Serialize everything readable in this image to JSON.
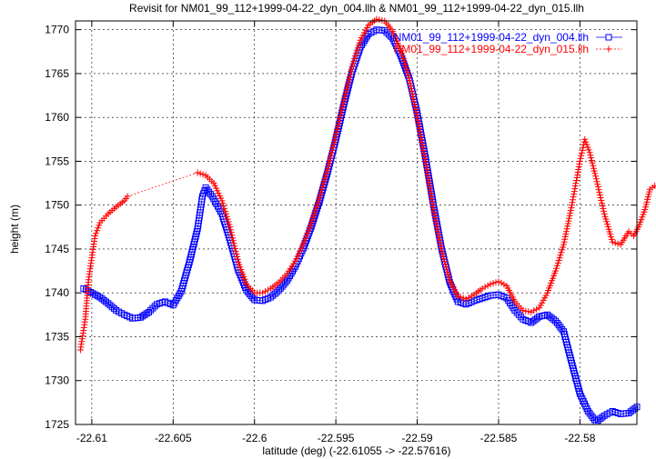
{
  "chart_data": {
    "type": "scatter",
    "title": "Revisit for NM01_99_112+1999-04-22_dyn_004.llh & NM01_99_112+1999-04-22_dyn_015.llh",
    "xlabel": "latitude (deg) (-22.61055 -> -22.57616)",
    "ylabel": "height (m)",
    "xlim": [
      -22.611,
      -22.5765
    ],
    "ylim": [
      1725,
      1771
    ],
    "xticks": [
      {
        "value": -22.61,
        "label": "-22.61"
      },
      {
        "value": -22.605,
        "label": "-22.605"
      },
      {
        "value": -22.6,
        "label": "-22.6"
      },
      {
        "value": -22.595,
        "label": "-22.595"
      },
      {
        "value": -22.59,
        "label": "-22.59"
      },
      {
        "value": -22.585,
        "label": "-22.585"
      },
      {
        "value": -22.58,
        "label": "-22.58"
      }
    ],
    "yticks": [
      {
        "value": 1725,
        "label": "1725"
      },
      {
        "value": 1730,
        "label": "1730"
      },
      {
        "value": 1735,
        "label": "1735"
      },
      {
        "value": 1740,
        "label": "1740"
      },
      {
        "value": 1745,
        "label": "1745"
      },
      {
        "value": 1750,
        "label": "1750"
      },
      {
        "value": 1755,
        "label": "1755"
      },
      {
        "value": 1760,
        "label": "1760"
      },
      {
        "value": 1765,
        "label": "1765"
      },
      {
        "value": 1770,
        "label": "1770"
      }
    ],
    "grid": true,
    "legend_position": "top-right",
    "series": [
      {
        "name": "NM01_99_112+1999-04-22_dyn_004.llh",
        "color": "#0000ff",
        "marker": "square",
        "points": [
          [
            -22.6105,
            1740.5
          ],
          [
            -22.6095,
            1739.5
          ],
          [
            -22.609,
            1738.8
          ],
          [
            -22.6085,
            1738.0
          ],
          [
            -22.608,
            1737.5
          ],
          [
            -22.6075,
            1737.1
          ],
          [
            -22.607,
            1737.2
          ],
          [
            -22.6065,
            1737.8
          ],
          [
            -22.606,
            1738.7
          ],
          [
            -22.6055,
            1739.0
          ],
          [
            -22.605,
            1738.6
          ],
          [
            -22.6045,
            1740.2
          ],
          [
            -22.604,
            1743.5
          ],
          [
            -22.6035,
            1747.3
          ],
          [
            -22.6032,
            1751.0
          ],
          [
            -22.603,
            1752.0
          ],
          [
            -22.6026,
            1751.0
          ],
          [
            -22.602,
            1749.0
          ],
          [
            -22.6015,
            1746.0
          ],
          [
            -22.601,
            1742.6
          ],
          [
            -22.6005,
            1740.3
          ],
          [
            -22.6,
            1739.2
          ],
          [
            -22.5995,
            1739.1
          ],
          [
            -22.599,
            1739.5
          ],
          [
            -22.5985,
            1740.3
          ],
          [
            -22.598,
            1741.4
          ],
          [
            -22.5975,
            1743.0
          ],
          [
            -22.597,
            1745.1
          ],
          [
            -22.5965,
            1747.6
          ],
          [
            -22.596,
            1750.5
          ],
          [
            -22.5955,
            1753.8
          ],
          [
            -22.595,
            1757.5
          ],
          [
            -22.5945,
            1761.5
          ],
          [
            -22.594,
            1765.2
          ],
          [
            -22.5935,
            1768.0
          ],
          [
            -22.593,
            1769.5
          ],
          [
            -22.5925,
            1770.0
          ],
          [
            -22.592,
            1769.9
          ],
          [
            -22.5915,
            1769.0
          ],
          [
            -22.591,
            1767.0
          ],
          [
            -22.5905,
            1764.5
          ],
          [
            -22.59,
            1760.5
          ],
          [
            -22.5895,
            1755.5
          ],
          [
            -22.589,
            1750.0
          ],
          [
            -22.5885,
            1745.0
          ],
          [
            -22.588,
            1741.2
          ],
          [
            -22.5875,
            1739.0
          ],
          [
            -22.587,
            1738.7
          ],
          [
            -22.5865,
            1739.1
          ],
          [
            -22.586,
            1739.4
          ],
          [
            -22.5855,
            1739.7
          ],
          [
            -22.585,
            1739.8
          ],
          [
            -22.5845,
            1739.4
          ],
          [
            -22.584,
            1738.0
          ],
          [
            -22.5835,
            1737.0
          ],
          [
            -22.583,
            1736.6
          ],
          [
            -22.5825,
            1737.3
          ],
          [
            -22.582,
            1737.5
          ],
          [
            -22.5815,
            1736.8
          ],
          [
            -22.581,
            1735.6
          ],
          [
            -22.5805,
            1732.0
          ],
          [
            -22.58,
            1728.5
          ],
          [
            -22.5795,
            1726.5
          ],
          [
            -22.579,
            1725.3
          ],
          [
            -22.5785,
            1726.0
          ],
          [
            -22.578,
            1726.5
          ],
          [
            -22.5775,
            1726.2
          ],
          [
            -22.577,
            1726.3
          ],
          [
            -22.5765,
            1727.0
          ]
        ]
      },
      {
        "name": "NM01_99_112+1999-04-22_dyn_015.llh",
        "color": "#ff0000",
        "marker": "plus",
        "points": [
          [
            -22.6107,
            1733.5
          ],
          [
            -22.6104,
            1737.0
          ],
          [
            -22.6102,
            1741.5
          ],
          [
            -22.61,
            1744.0
          ],
          [
            -22.6098,
            1746.5
          ],
          [
            -22.6095,
            1748.0
          ],
          [
            -22.609,
            1749.0
          ],
          [
            -22.6085,
            1749.8
          ],
          [
            -22.608,
            1750.5
          ],
          [
            -22.6078,
            1751.0
          ],
          [
            -22.6035,
            1753.7
          ],
          [
            -22.603,
            1753.4
          ],
          [
            -22.6025,
            1752.5
          ],
          [
            -22.602,
            1750.5
          ],
          [
            -22.6015,
            1747.5
          ],
          [
            -22.601,
            1743.5
          ],
          [
            -22.6005,
            1741.0
          ],
          [
            -22.6,
            1740.0
          ],
          [
            -22.5995,
            1740.0
          ],
          [
            -22.599,
            1740.5
          ],
          [
            -22.5985,
            1741.2
          ],
          [
            -22.598,
            1742.2
          ],
          [
            -22.5975,
            1743.6
          ],
          [
            -22.597,
            1745.6
          ],
          [
            -22.5965,
            1748.0
          ],
          [
            -22.596,
            1750.9
          ],
          [
            -22.5955,
            1754.2
          ],
          [
            -22.595,
            1758.0
          ],
          [
            -22.5945,
            1762.0
          ],
          [
            -22.594,
            1765.8
          ],
          [
            -22.5935,
            1768.8
          ],
          [
            -22.593,
            1770.5
          ],
          [
            -22.5925,
            1771.2
          ],
          [
            -22.592,
            1771.0
          ],
          [
            -22.5915,
            1769.8
          ],
          [
            -22.591,
            1767.6
          ],
          [
            -22.5905,
            1764.5
          ],
          [
            -22.59,
            1760.0
          ],
          [
            -22.5895,
            1755.0
          ],
          [
            -22.589,
            1749.5
          ],
          [
            -22.5885,
            1744.8
          ],
          [
            -22.588,
            1741.4
          ],
          [
            -22.5875,
            1739.6
          ],
          [
            -22.587,
            1739.3
          ],
          [
            -22.5865,
            1739.8
          ],
          [
            -22.586,
            1740.5
          ],
          [
            -22.5855,
            1741.0
          ],
          [
            -22.585,
            1741.3
          ],
          [
            -22.5845,
            1740.8
          ],
          [
            -22.584,
            1739.0
          ],
          [
            -22.5835,
            1738.0
          ],
          [
            -22.583,
            1737.8
          ],
          [
            -22.5825,
            1738.3
          ],
          [
            -22.582,
            1740.0
          ],
          [
            -22.5815,
            1742.5
          ],
          [
            -22.581,
            1745.5
          ],
          [
            -22.5805,
            1750.0
          ],
          [
            -22.58,
            1755.0
          ],
          [
            -22.5797,
            1757.5
          ],
          [
            -22.5794,
            1756.0
          ],
          [
            -22.579,
            1753.0
          ],
          [
            -22.5785,
            1749.0
          ],
          [
            -22.578,
            1745.8
          ],
          [
            -22.5775,
            1745.5
          ],
          [
            -22.577,
            1747.0
          ],
          [
            -22.5767,
            1746.5
          ],
          [
            -22.5764,
            1747.5
          ],
          [
            -22.576,
            1749.5
          ],
          [
            -22.5757,
            1751.8
          ],
          [
            -22.5754,
            1752.2
          ]
        ]
      }
    ]
  }
}
